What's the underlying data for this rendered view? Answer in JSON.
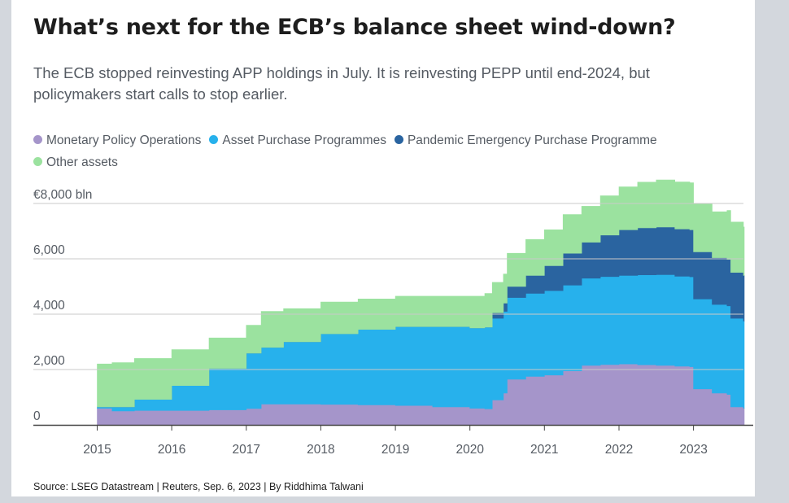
{
  "chart_data": {
    "type": "area",
    "stacked": true,
    "title": "What’s next for the ECB’s balance sheet wind-down?",
    "subtitle": "The ECB stopped reinvesting APP holdings in July. It is reinvesting PEPP until end-2024, but policymakers start calls to stop earlier.",
    "source": "Source: LSEG Datastream | Reuters, Sep. 6, 2023 | By Riddhima Talwani",
    "y_unit_label": "€8,000 bln",
    "ylim": [
      0,
      8000
    ],
    "y_ticks": [
      0,
      2000,
      4000,
      6000,
      8000
    ],
    "y_tick_labels": [
      "0",
      "2,000",
      "4,000",
      "6,000",
      "€8,000 bln"
    ],
    "xlim": [
      2015.0,
      2023.67
    ],
    "x_ticks": [
      2015,
      2016,
      2017,
      2018,
      2019,
      2020,
      2021,
      2022,
      2023
    ],
    "x_tick_labels": [
      "2015",
      "2016",
      "2017",
      "2018",
      "2019",
      "2020",
      "2021",
      "2022",
      "2023"
    ],
    "grid": "horizontal",
    "legend_position": "top",
    "x": [
      2015.0,
      2015.2,
      2015.5,
      2016.0,
      2016.5,
      2017.0,
      2017.2,
      2017.5,
      2018.0,
      2018.5,
      2019.0,
      2019.5,
      2020.0,
      2020.2,
      2020.3,
      2020.45,
      2020.5,
      2020.75,
      2021.0,
      2021.25,
      2021.5,
      2021.75,
      2022.0,
      2022.25,
      2022.5,
      2022.75,
      2022.95,
      2023.0,
      2023.25,
      2023.45,
      2023.5,
      2023.67
    ],
    "series": [
      {
        "name": "Monetary Policy Operations",
        "color": "#a595ca",
        "values": [
          600,
          500,
          520,
          520,
          540,
          590,
          750,
          750,
          740,
          720,
          700,
          650,
          600,
          580,
          900,
          1150,
          1650,
          1750,
          1800,
          1950,
          2150,
          2180,
          2200,
          2170,
          2150,
          2120,
          2100,
          1300,
          1150,
          1100,
          650,
          600
        ]
      },
      {
        "name": "Asset Purchase Programmes",
        "color": "#27b1ec",
        "values": [
          50,
          150,
          400,
          900,
          1500,
          2000,
          2050,
          2250,
          2550,
          2730,
          2850,
          2900,
          2900,
          2950,
          2950,
          2950,
          2950,
          3000,
          3050,
          3100,
          3150,
          3180,
          3200,
          3250,
          3280,
          3250,
          3250,
          3250,
          3200,
          3200,
          3200,
          3150
        ]
      },
      {
        "name": "Pandemic Emergency Purchase Programme",
        "color": "#2a64a0",
        "values": [
          0,
          0,
          0,
          0,
          0,
          0,
          0,
          0,
          0,
          0,
          0,
          0,
          0,
          0,
          200,
          300,
          400,
          650,
          900,
          1150,
          1300,
          1500,
          1650,
          1700,
          1720,
          1710,
          1700,
          1700,
          1690,
          1680,
          1660,
          1650
        ]
      },
      {
        "name": "Other assets",
        "color": "#9be29f",
        "values": [
          1550,
          1600,
          1480,
          1300,
          1100,
          1010,
          1300,
          1200,
          1150,
          1100,
          1100,
          1100,
          1150,
          1220,
          1100,
          1050,
          1200,
          1300,
          1300,
          1400,
          1300,
          1420,
          1550,
          1650,
          1700,
          1700,
          1700,
          1750,
          1660,
          1770,
          1820,
          1750
        ]
      }
    ]
  }
}
